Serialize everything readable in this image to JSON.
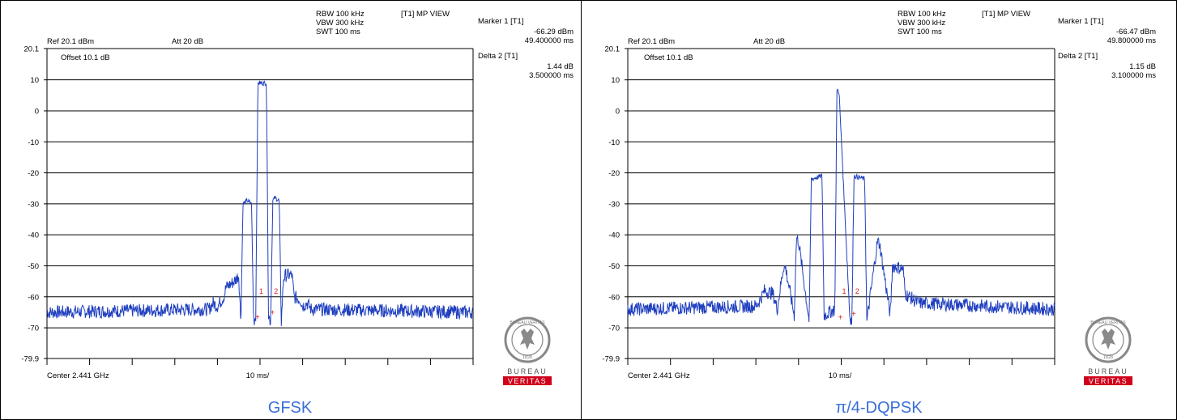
{
  "panels": [
    {
      "settings": {
        "rbw": "RBW 100 kHz",
        "vbw": "VBW 300 kHz",
        "swt": "SWT 100 ms",
        "trace_mode": "[T1] MP VIEW",
        "ref": "Ref 20.1 dBm",
        "att": "Att  20 dB",
        "offset": "Offset 10.1 dB"
      },
      "markers": {
        "marker_label": "Marker 1 [T1]",
        "marker_level": "-66.29 dBm",
        "marker_time": "49.400000 ms",
        "delta_label": "Delta 2 [T1]",
        "delta_level": "1.44 dB",
        "delta_time": "3.500000 ms"
      },
      "x_left_label": "Center 2.441 GHz",
      "x_center_label": "10 ms/",
      "caption": "GFSK"
    },
    {
      "settings": {
        "rbw": "RBW 100 kHz",
        "vbw": "VBW 300 kHz",
        "swt": "SWT 100 ms",
        "trace_mode": "[T1] MP VIEW",
        "ref": "Ref 20.1 dBm",
        "att": "Att  20 dB",
        "offset": "Offset 10.1 dB"
      },
      "markers": {
        "marker_label": "Marker 1 [T1]",
        "marker_level": "-66.47 dBm",
        "marker_time": "49.800000 ms",
        "delta_label": "Delta 2 [T1]",
        "delta_level": "1.15 dB",
        "delta_time": "3.100000 ms"
      },
      "x_left_label": "Center 2.441 GHz",
      "x_center_label": "10 ms/",
      "caption": "π/4-DQPSK"
    }
  ],
  "logo": {
    "top_text": "BUREAU VERITAS",
    "year": "1828",
    "word1": "BUREAU",
    "word2": "VERITAS"
  },
  "chart_data": [
    {
      "type": "line",
      "title": "",
      "xlabel": "",
      "ylabel": "",
      "xlim": [
        0,
        100
      ],
      "ylim": [
        -79.9,
        20.1
      ],
      "y_ticks": [
        "20.1",
        "10",
        "0",
        "-10",
        "-20",
        "-30",
        "-40",
        "-50",
        "-60",
        "-70",
        "-79.9"
      ],
      "grid": true,
      "trace_color": "#1f3fbf",
      "noise_floor": -65,
      "series": [
        {
          "x": [
            0,
            38,
            39,
            40,
            41.5,
            42,
            44,
            45,
            45.5,
            46,
            47,
            48,
            48.5,
            49,
            49.5,
            51.5,
            52,
            52.5,
            53,
            53.5,
            54.5,
            55,
            55.5,
            56,
            57.5,
            58,
            59.5,
            60,
            61,
            62,
            100
          ],
          "y": [
            -65,
            -64,
            -62,
            -63,
            -60,
            -57,
            -55,
            -53,
            -68,
            -30,
            -29,
            -30,
            -68,
            -66,
            9,
            9,
            -66,
            -68,
            -29,
            -28,
            -29,
            -68,
            -54,
            -53,
            -53,
            -60,
            -61,
            -63,
            -62,
            -64,
            -65
          ]
        }
      ],
      "markers": [
        {
          "label": "1",
          "x": 49.4,
          "y": -66.29
        },
        {
          "label": "2",
          "x": 52.9,
          "y": -64.85
        }
      ]
    },
    {
      "type": "line",
      "title": "",
      "xlabel": "",
      "ylabel": "",
      "xlim": [
        0,
        100
      ],
      "ylim": [
        -79.9,
        20.1
      ],
      "y_ticks": [
        "20.1",
        "10",
        "0",
        "-10",
        "-20",
        "-30",
        "-40",
        "-50",
        "-60",
        "-70",
        "-79.9"
      ],
      "grid": true,
      "trace_color": "#1f3fbf",
      "noise_floor": -64,
      "series": [
        {
          "x": [
            0,
            30,
            31,
            32,
            34,
            35,
            36.5,
            37,
            39,
            39.5,
            40,
            42.5,
            43,
            45.5,
            46,
            48.5,
            49,
            49.5,
            52,
            52.5,
            53,
            55.5,
            56,
            58.5,
            59,
            61.5,
            62,
            64.5,
            65,
            67,
            68,
            100
          ],
          "y": [
            -64,
            -63,
            -61,
            -58,
            -59,
            -64,
            -50,
            -51,
            -66,
            -41,
            -42,
            -68,
            -22,
            -21,
            -66,
            -64,
            7,
            6,
            -66,
            -68,
            -21,
            -22,
            -68,
            -42,
            -43,
            -66,
            -50,
            -51,
            -59,
            -61,
            -62,
            -64
          ]
        }
      ],
      "markers": [
        {
          "label": "1",
          "x": 49.8,
          "y": -66.47
        },
        {
          "label": "2",
          "x": 52.9,
          "y": -65.32
        }
      ]
    }
  ]
}
